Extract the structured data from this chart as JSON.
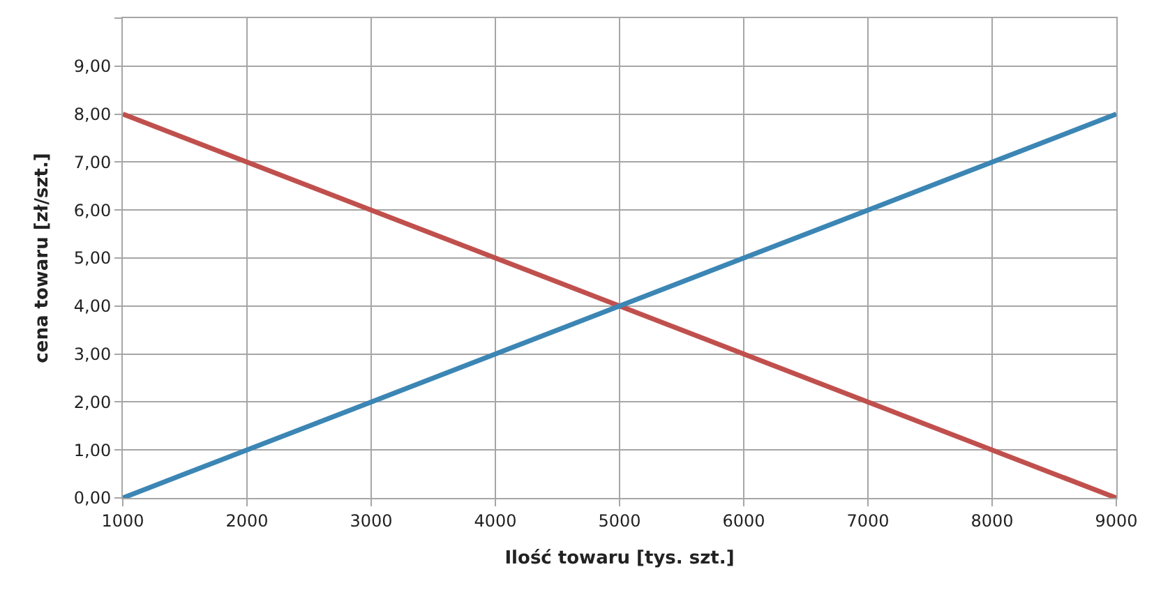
{
  "chart_data": {
    "type": "line",
    "xlabel": "Ilość towaru [tys. szt.]",
    "ylabel": "cena towaru [zł/szt.]",
    "x": [
      1000,
      5000,
      9000
    ],
    "series": [
      {
        "color": "#c0504d",
        "values": [
          8,
          4,
          0
        ]
      },
      {
        "color": "#3b86b4",
        "values": [
          0,
          4,
          8
        ]
      }
    ],
    "xlim": [
      1000,
      9000
    ],
    "xticks": [
      1000,
      2000,
      3000,
      4000,
      5000,
      6000,
      7000,
      8000,
      9000
    ],
    "ylim": [
      0,
      10
    ],
    "yticks": [
      {
        "value": 0,
        "label": "0,00"
      },
      {
        "value": 1,
        "label": "1,00"
      },
      {
        "value": 2,
        "label": "2,00"
      },
      {
        "value": 3,
        "label": "3,00"
      },
      {
        "value": 4,
        "label": "4,00"
      },
      {
        "value": 5,
        "label": "5,00"
      },
      {
        "value": 6,
        "label": "6,00"
      },
      {
        "value": 7,
        "label": "7,00"
      },
      {
        "value": 8,
        "label": "8,00"
      },
      {
        "value": 9,
        "label": "9,00"
      },
      {
        "value": 10,
        "label": null
      }
    ],
    "grid": true,
    "marker": "none",
    "line_style": "solid"
  }
}
